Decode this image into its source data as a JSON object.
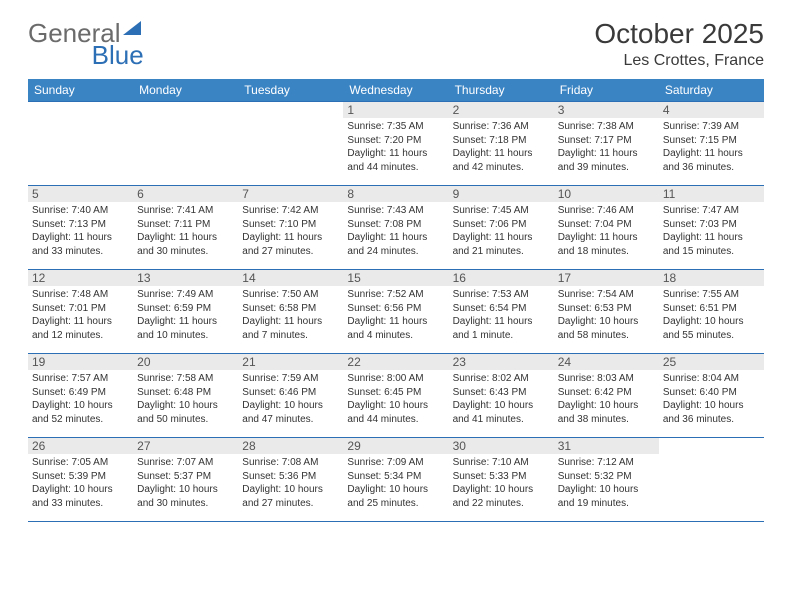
{
  "logo": {
    "text_gray": "General",
    "text_blue": "Blue"
  },
  "title": {
    "month": "October 2025",
    "location": "Les Crottes, France"
  },
  "colors": {
    "header_bg": "#3b84c4",
    "header_text": "#ffffff",
    "border": "#2d6fb5",
    "daynum_bg": "#eaeaea",
    "logo_gray": "#6b6b6b",
    "logo_blue": "#2d6fb5"
  },
  "weekdays": [
    "Sunday",
    "Monday",
    "Tuesday",
    "Wednesday",
    "Thursday",
    "Friday",
    "Saturday"
  ],
  "weeks": [
    [
      {
        "day": "",
        "sunrise": "",
        "sunset": "",
        "daylight": ""
      },
      {
        "day": "",
        "sunrise": "",
        "sunset": "",
        "daylight": ""
      },
      {
        "day": "",
        "sunrise": "",
        "sunset": "",
        "daylight": ""
      },
      {
        "day": "1",
        "sunrise": "Sunrise: 7:35 AM",
        "sunset": "Sunset: 7:20 PM",
        "daylight": "Daylight: 11 hours and 44 minutes."
      },
      {
        "day": "2",
        "sunrise": "Sunrise: 7:36 AM",
        "sunset": "Sunset: 7:18 PM",
        "daylight": "Daylight: 11 hours and 42 minutes."
      },
      {
        "day": "3",
        "sunrise": "Sunrise: 7:38 AM",
        "sunset": "Sunset: 7:17 PM",
        "daylight": "Daylight: 11 hours and 39 minutes."
      },
      {
        "day": "4",
        "sunrise": "Sunrise: 7:39 AM",
        "sunset": "Sunset: 7:15 PM",
        "daylight": "Daylight: 11 hours and 36 minutes."
      }
    ],
    [
      {
        "day": "5",
        "sunrise": "Sunrise: 7:40 AM",
        "sunset": "Sunset: 7:13 PM",
        "daylight": "Daylight: 11 hours and 33 minutes."
      },
      {
        "day": "6",
        "sunrise": "Sunrise: 7:41 AM",
        "sunset": "Sunset: 7:11 PM",
        "daylight": "Daylight: 11 hours and 30 minutes."
      },
      {
        "day": "7",
        "sunrise": "Sunrise: 7:42 AM",
        "sunset": "Sunset: 7:10 PM",
        "daylight": "Daylight: 11 hours and 27 minutes."
      },
      {
        "day": "8",
        "sunrise": "Sunrise: 7:43 AM",
        "sunset": "Sunset: 7:08 PM",
        "daylight": "Daylight: 11 hours and 24 minutes."
      },
      {
        "day": "9",
        "sunrise": "Sunrise: 7:45 AM",
        "sunset": "Sunset: 7:06 PM",
        "daylight": "Daylight: 11 hours and 21 minutes."
      },
      {
        "day": "10",
        "sunrise": "Sunrise: 7:46 AM",
        "sunset": "Sunset: 7:04 PM",
        "daylight": "Daylight: 11 hours and 18 minutes."
      },
      {
        "day": "11",
        "sunrise": "Sunrise: 7:47 AM",
        "sunset": "Sunset: 7:03 PM",
        "daylight": "Daylight: 11 hours and 15 minutes."
      }
    ],
    [
      {
        "day": "12",
        "sunrise": "Sunrise: 7:48 AM",
        "sunset": "Sunset: 7:01 PM",
        "daylight": "Daylight: 11 hours and 12 minutes."
      },
      {
        "day": "13",
        "sunrise": "Sunrise: 7:49 AM",
        "sunset": "Sunset: 6:59 PM",
        "daylight": "Daylight: 11 hours and 10 minutes."
      },
      {
        "day": "14",
        "sunrise": "Sunrise: 7:50 AM",
        "sunset": "Sunset: 6:58 PM",
        "daylight": "Daylight: 11 hours and 7 minutes."
      },
      {
        "day": "15",
        "sunrise": "Sunrise: 7:52 AM",
        "sunset": "Sunset: 6:56 PM",
        "daylight": "Daylight: 11 hours and 4 minutes."
      },
      {
        "day": "16",
        "sunrise": "Sunrise: 7:53 AM",
        "sunset": "Sunset: 6:54 PM",
        "daylight": "Daylight: 11 hours and 1 minute."
      },
      {
        "day": "17",
        "sunrise": "Sunrise: 7:54 AM",
        "sunset": "Sunset: 6:53 PM",
        "daylight": "Daylight: 10 hours and 58 minutes."
      },
      {
        "day": "18",
        "sunrise": "Sunrise: 7:55 AM",
        "sunset": "Sunset: 6:51 PM",
        "daylight": "Daylight: 10 hours and 55 minutes."
      }
    ],
    [
      {
        "day": "19",
        "sunrise": "Sunrise: 7:57 AM",
        "sunset": "Sunset: 6:49 PM",
        "daylight": "Daylight: 10 hours and 52 minutes."
      },
      {
        "day": "20",
        "sunrise": "Sunrise: 7:58 AM",
        "sunset": "Sunset: 6:48 PM",
        "daylight": "Daylight: 10 hours and 50 minutes."
      },
      {
        "day": "21",
        "sunrise": "Sunrise: 7:59 AM",
        "sunset": "Sunset: 6:46 PM",
        "daylight": "Daylight: 10 hours and 47 minutes."
      },
      {
        "day": "22",
        "sunrise": "Sunrise: 8:00 AM",
        "sunset": "Sunset: 6:45 PM",
        "daylight": "Daylight: 10 hours and 44 minutes."
      },
      {
        "day": "23",
        "sunrise": "Sunrise: 8:02 AM",
        "sunset": "Sunset: 6:43 PM",
        "daylight": "Daylight: 10 hours and 41 minutes."
      },
      {
        "day": "24",
        "sunrise": "Sunrise: 8:03 AM",
        "sunset": "Sunset: 6:42 PM",
        "daylight": "Daylight: 10 hours and 38 minutes."
      },
      {
        "day": "25",
        "sunrise": "Sunrise: 8:04 AM",
        "sunset": "Sunset: 6:40 PM",
        "daylight": "Daylight: 10 hours and 36 minutes."
      }
    ],
    [
      {
        "day": "26",
        "sunrise": "Sunrise: 7:05 AM",
        "sunset": "Sunset: 5:39 PM",
        "daylight": "Daylight: 10 hours and 33 minutes."
      },
      {
        "day": "27",
        "sunrise": "Sunrise: 7:07 AM",
        "sunset": "Sunset: 5:37 PM",
        "daylight": "Daylight: 10 hours and 30 minutes."
      },
      {
        "day": "28",
        "sunrise": "Sunrise: 7:08 AM",
        "sunset": "Sunset: 5:36 PM",
        "daylight": "Daylight: 10 hours and 27 minutes."
      },
      {
        "day": "29",
        "sunrise": "Sunrise: 7:09 AM",
        "sunset": "Sunset: 5:34 PM",
        "daylight": "Daylight: 10 hours and 25 minutes."
      },
      {
        "day": "30",
        "sunrise": "Sunrise: 7:10 AM",
        "sunset": "Sunset: 5:33 PM",
        "daylight": "Daylight: 10 hours and 22 minutes."
      },
      {
        "day": "31",
        "sunrise": "Sunrise: 7:12 AM",
        "sunset": "Sunset: 5:32 PM",
        "daylight": "Daylight: 10 hours and 19 minutes."
      },
      {
        "day": "",
        "sunrise": "",
        "sunset": "",
        "daylight": ""
      }
    ]
  ]
}
